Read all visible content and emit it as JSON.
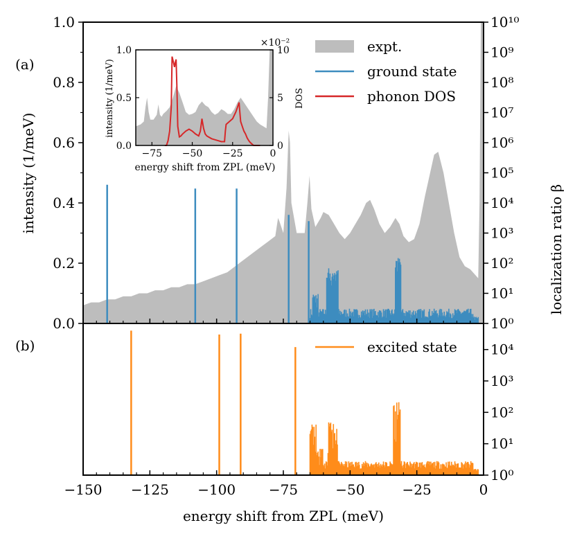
{
  "figure": {
    "xlabel": "energy shift from ZPL (meV)",
    "panel_a_label": "(a)",
    "panel_b_label": "(b)",
    "ylabel_left": "intensity (1/meV)",
    "ylabel_right": "localization ratio β"
  },
  "inset": {
    "xlabel": "energy shift from ZPL (meV)",
    "ylabel_left": "intensity (1/meV)",
    "ylabel_right": "DOS",
    "multiplier": "×10⁻²"
  },
  "colors": {
    "expt": "#bdbdbd",
    "ground": "#3d8cbf",
    "phonon": "#d62728",
    "excited": "#ff8c1a"
  },
  "chart_data": [
    {
      "panel": "a",
      "type": "area",
      "xlim": [
        -150,
        0
      ],
      "ylim": [
        0,
        1.0
      ],
      "xticks": [
        -150,
        -125,
        -100,
        -75,
        -50,
        -25,
        0
      ],
      "yticks": [
        0.0,
        0.2,
        0.4,
        0.6,
        0.8,
        1.0
      ],
      "ytick_labels": [
        "0.0",
        "0.2",
        "0.4",
        "0.6",
        "0.8",
        "1.0"
      ],
      "right_axis": {
        "scale": "log",
        "ylim": [
          1,
          10000000000
        ],
        "tick_exponents": [
          0,
          1,
          2,
          3,
          4,
          5,
          6,
          7,
          8,
          9,
          10
        ],
        "tick_labels": [
          "10⁰",
          "10¹",
          "10²",
          "10³",
          "10⁴",
          "10⁵",
          "10⁶",
          "10⁷",
          "10⁸",
          "10⁹",
          "10¹⁰"
        ]
      },
      "legend": {
        "position": "top-right",
        "entries": [
          "expt.",
          "ground state",
          "phonon DOS"
        ]
      },
      "series": [
        {
          "name": "expt.",
          "kind": "filled-area",
          "x": [
            -150,
            -147,
            -144,
            -141,
            -138,
            -135,
            -132,
            -129,
            -126,
            -123,
            -120,
            -117,
            -114,
            -111,
            -108,
            -105,
            -102,
            -99,
            -96,
            -93,
            -90,
            -87,
            -84,
            -81,
            -78,
            -77,
            -76.5,
            -75,
            -73.8,
            -73,
            -72.5,
            -72,
            -70,
            -67,
            -66,
            -65.2,
            -64.5,
            -63,
            -61,
            -60,
            -58,
            -56,
            -54,
            -52,
            -50,
            -48,
            -46,
            -44,
            -42.5,
            -41,
            -39,
            -37,
            -35,
            -33,
            -31.5,
            -30,
            -28,
            -26,
            -24,
            -22,
            -20,
            -18.5,
            -17,
            -15,
            -13,
            -11,
            -9,
            -7,
            -5,
            -3,
            -2,
            -1.5,
            -1,
            0
          ],
          "y": [
            0.06,
            0.07,
            0.07,
            0.08,
            0.08,
            0.09,
            0.09,
            0.1,
            0.1,
            0.11,
            0.11,
            0.12,
            0.12,
            0.13,
            0.13,
            0.14,
            0.15,
            0.16,
            0.17,
            0.19,
            0.21,
            0.23,
            0.25,
            0.27,
            0.29,
            0.35,
            0.34,
            0.3,
            0.45,
            0.64,
            0.6,
            0.4,
            0.3,
            0.3,
            0.4,
            0.49,
            0.38,
            0.32,
            0.35,
            0.37,
            0.36,
            0.33,
            0.3,
            0.28,
            0.3,
            0.33,
            0.36,
            0.4,
            0.41,
            0.38,
            0.33,
            0.3,
            0.32,
            0.35,
            0.33,
            0.29,
            0.27,
            0.28,
            0.33,
            0.42,
            0.5,
            0.56,
            0.57,
            0.5,
            0.4,
            0.3,
            0.22,
            0.19,
            0.18,
            0.16,
            0.15,
            0.4,
            1.0,
            1.0
          ]
        },
        {
          "name": "ground state",
          "kind": "sticks-log",
          "x": [
            -141,
            -108,
            -92.5,
            -73,
            -65.5
          ],
          "y": [
            40000,
            30000,
            30000,
            4000,
            2500
          ]
        }
      ]
    },
    {
      "panel": "a-inset",
      "type": "area",
      "xlim": [
        -85,
        0
      ],
      "ylim": [
        0,
        1.0
      ],
      "xticks": [
        -75,
        -50,
        -25,
        0
      ],
      "yticks": [
        0.0,
        0.5,
        1.0
      ],
      "ytick_labels": [
        "0.0",
        "0.5",
        "1.0"
      ],
      "right_axis": {
        "ylim": [
          0,
          10
        ],
        "ticks": [
          0,
          5,
          10
        ],
        "tick_labels": [
          "0",
          "5",
          "10"
        ]
      },
      "series": [
        {
          "name": "expt.",
          "kind": "filled-area",
          "x": [
            -85,
            -82,
            -80,
            -79,
            -78,
            -77,
            -76,
            -74,
            -72,
            -71,
            -70,
            -69,
            -68,
            -66,
            -64,
            -62,
            -60,
            -58,
            -56,
            -54,
            -52,
            -50,
            -48,
            -46,
            -44,
            -42,
            -40,
            -38,
            -36,
            -34,
            -32,
            -30,
            -28,
            -26,
            -24,
            -22,
            -20,
            -18,
            -16,
            -14,
            -12,
            -10,
            -8,
            -6,
            -4,
            -3,
            -2,
            0
          ],
          "y": [
            0.2,
            0.22,
            0.25,
            0.4,
            0.5,
            0.35,
            0.27,
            0.27,
            0.32,
            0.43,
            0.32,
            0.3,
            0.33,
            0.36,
            0.4,
            0.5,
            0.62,
            0.55,
            0.45,
            0.35,
            0.32,
            0.33,
            0.35,
            0.42,
            0.46,
            0.42,
            0.4,
            0.35,
            0.32,
            0.34,
            0.38,
            0.36,
            0.33,
            0.33,
            0.38,
            0.45,
            0.5,
            0.45,
            0.4,
            0.35,
            0.3,
            0.25,
            0.22,
            0.2,
            0.18,
            0.5,
            1.0,
            1.0
          ]
        },
        {
          "name": "phonon DOS",
          "kind": "line",
          "axis": "right",
          "x": [
            -67,
            -66,
            -65,
            -64,
            -63,
            -62.5,
            -61.5,
            -61,
            -60.5,
            -60,
            -59.5,
            -59,
            -58,
            -57,
            -56,
            -54,
            -52,
            -50,
            -48,
            -46,
            -45,
            -44,
            -43,
            -42,
            -41,
            -40,
            -38,
            -36,
            -34,
            -32,
            -30,
            -29.5,
            -29,
            -27,
            -25,
            -23,
            -22,
            -21,
            -20.5,
            -20,
            -19,
            -18,
            -17,
            -16,
            -15,
            -14,
            -12,
            -10,
            -8
          ],
          "y": [
            0,
            0,
            0.5,
            1.5,
            4,
            9.3,
            8.6,
            8.2,
            8.7,
            9.0,
            6,
            2,
            0.9,
            1.0,
            1.2,
            1.5,
            1.7,
            1.5,
            1.2,
            1.0,
            1.5,
            2.8,
            1.8,
            1.2,
            1.0,
            0.9,
            0.7,
            0.6,
            0.5,
            0.4,
            0.4,
            1.5,
            2.2,
            2.5,
            2.8,
            3.5,
            4.0,
            4.5,
            3.5,
            2.5,
            2.0,
            1.5,
            1.2,
            0.8,
            0.5,
            0.3,
            0,
            0,
            0
          ]
        }
      ]
    },
    {
      "panel": "b",
      "type": "bar",
      "xlim": [
        -150,
        0
      ],
      "right_axis": {
        "scale": "log",
        "ylim": [
          1,
          50000
        ],
        "tick_exponents": [
          0,
          1,
          2,
          3,
          4
        ],
        "tick_labels": [
          "10⁰",
          "10¹",
          "10²",
          "10³",
          "10⁴"
        ]
      },
      "legend": {
        "position": "top-right",
        "entries": [
          "excited state"
        ]
      },
      "series": [
        {
          "name": "excited state",
          "kind": "sticks-log",
          "x": [
            -132,
            -99,
            -91,
            -70.5
          ],
          "y": [
            40000,
            30000,
            32000,
            12000
          ]
        }
      ]
    }
  ]
}
